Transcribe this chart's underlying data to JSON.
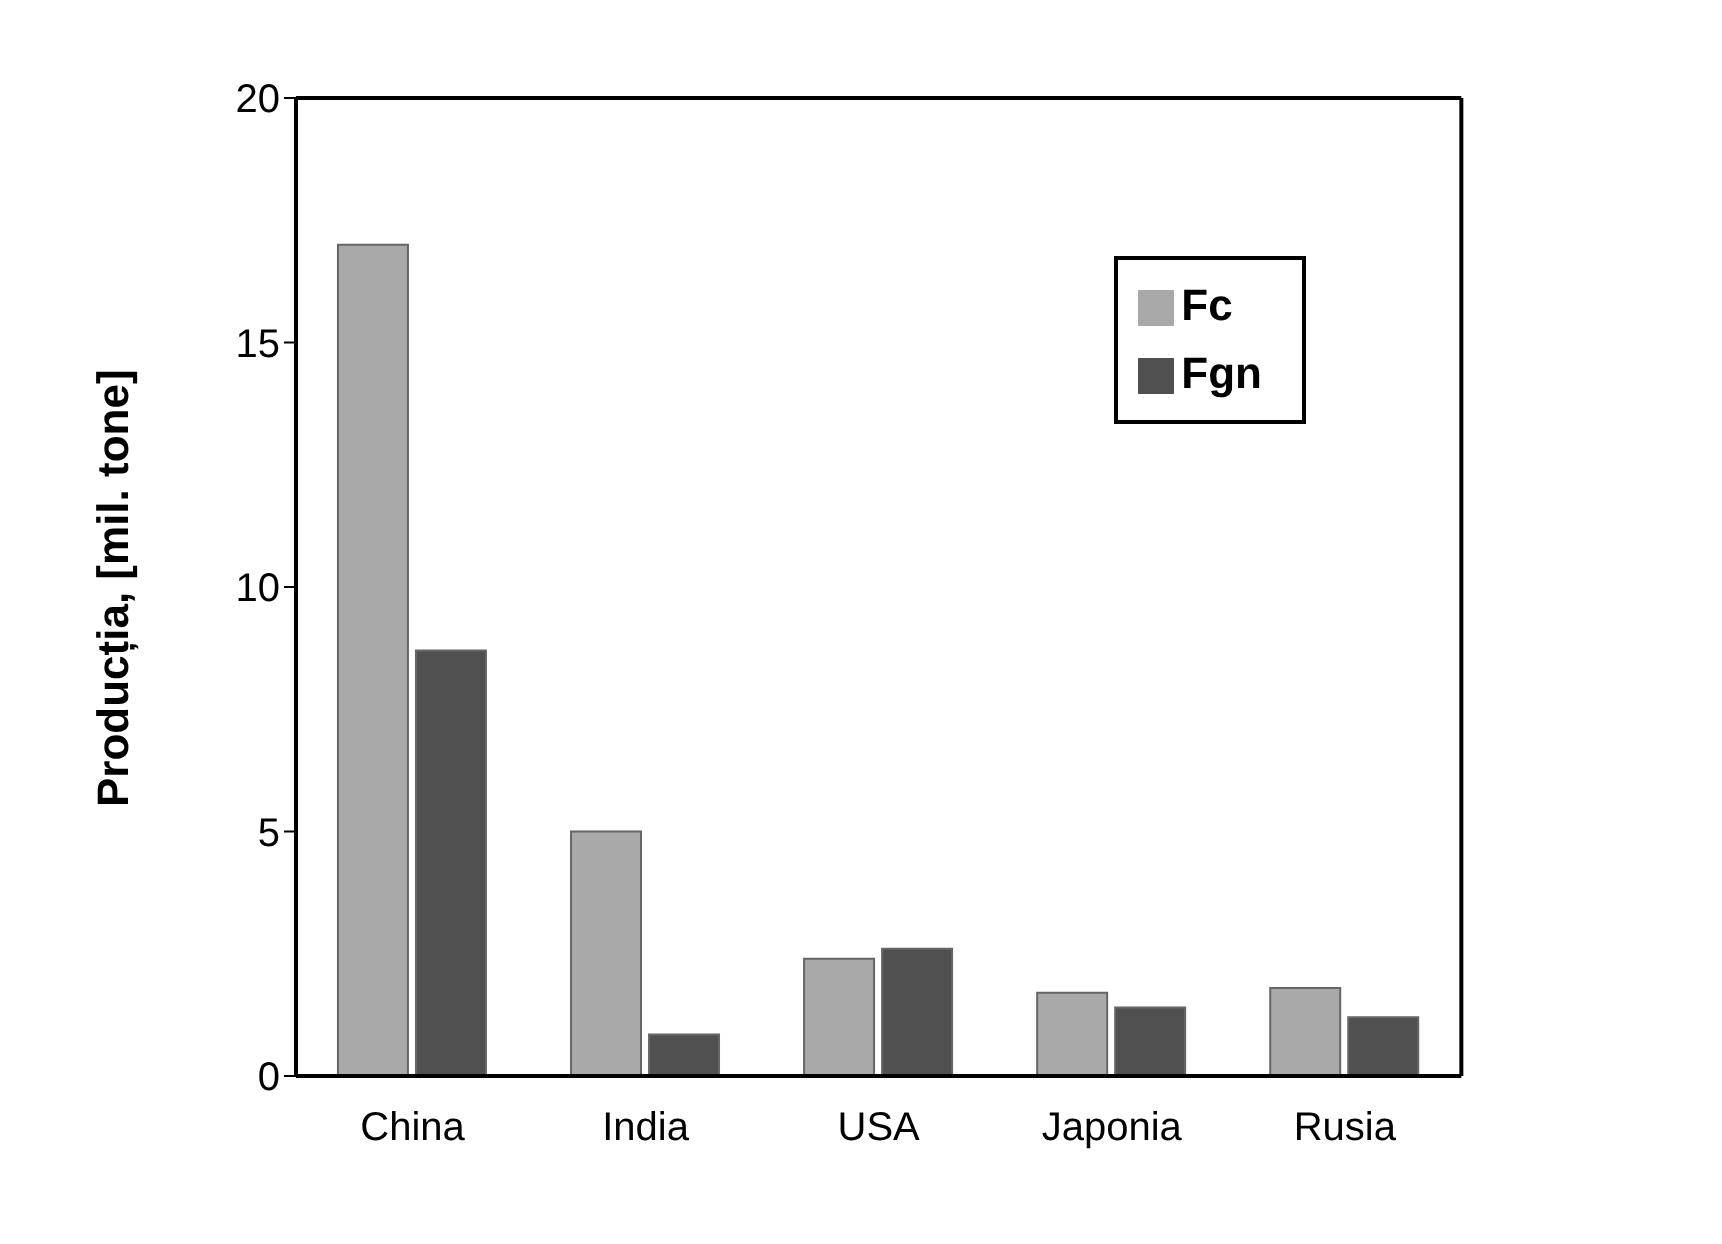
{
  "chart_data": {
    "type": "bar",
    "ylabel": "Producția, [mil. tone]",
    "categories": [
      "China",
      "India",
      "USA",
      "Japonia",
      "Rusia"
    ],
    "series": [
      {
        "name": "Fc",
        "color": "#a9a9a9",
        "values": [
          17,
          5.0,
          2.4,
          1.7,
          1.8
        ]
      },
      {
        "name": "Fgn",
        "color": "#505050",
        "values": [
          8.7,
          0.85,
          2.6,
          1.4,
          1.2
        ]
      }
    ],
    "ylim": [
      0,
      20
    ],
    "yticks": [
      0,
      5,
      10,
      15,
      20
    ],
    "legend": "top right"
  }
}
